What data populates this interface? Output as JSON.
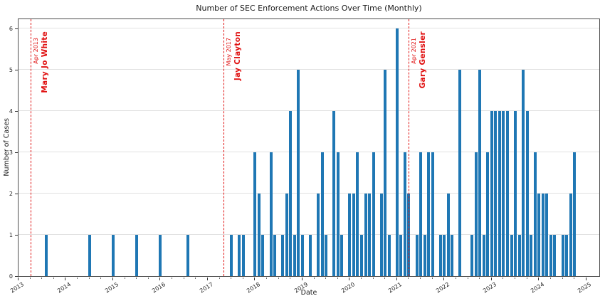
{
  "chart_data": {
    "type": "bar",
    "title": "Number of SEC Enforcement Actions Over Time (Monthly)",
    "xlabel": "Date",
    "ylabel": "Number of Cases",
    "ylim": [
      0,
      6.25
    ],
    "yticks": [
      0,
      1,
      2,
      3,
      4,
      5,
      6
    ],
    "xticks": [
      2013,
      2014,
      2015,
      2016,
      2017,
      2018,
      2019,
      2020,
      2021,
      2022,
      2023,
      2024,
      2025
    ],
    "x_start": "2013-01",
    "grid": "horizontal",
    "legend": "none",
    "bar_color": "#1f77b4",
    "annotation_color": "#e01010",
    "points": [
      {
        "date": "2013-08",
        "count": 1
      },
      {
        "date": "2014-07",
        "count": 1
      },
      {
        "date": "2015-01",
        "count": 1
      },
      {
        "date": "2015-07",
        "count": 1
      },
      {
        "date": "2016-01",
        "count": 1
      },
      {
        "date": "2016-08",
        "count": 1
      },
      {
        "date": "2017-07",
        "count": 1
      },
      {
        "date": "2017-09",
        "count": 1
      },
      {
        "date": "2017-10",
        "count": 1
      },
      {
        "date": "2018-01",
        "count": 3
      },
      {
        "date": "2018-02",
        "count": 2
      },
      {
        "date": "2018-03",
        "count": 1
      },
      {
        "date": "2018-05",
        "count": 3
      },
      {
        "date": "2018-06",
        "count": 1
      },
      {
        "date": "2018-08",
        "count": 1
      },
      {
        "date": "2018-09",
        "count": 2
      },
      {
        "date": "2018-10",
        "count": 4
      },
      {
        "date": "2018-11",
        "count": 1
      },
      {
        "date": "2018-12",
        "count": 5
      },
      {
        "date": "2019-01",
        "count": 1
      },
      {
        "date": "2019-03",
        "count": 1
      },
      {
        "date": "2019-05",
        "count": 2
      },
      {
        "date": "2019-06",
        "count": 3
      },
      {
        "date": "2019-07",
        "count": 1
      },
      {
        "date": "2019-09",
        "count": 4
      },
      {
        "date": "2019-10",
        "count": 3
      },
      {
        "date": "2019-11",
        "count": 1
      },
      {
        "date": "2020-01",
        "count": 2
      },
      {
        "date": "2020-02",
        "count": 2
      },
      {
        "date": "2020-03",
        "count": 3
      },
      {
        "date": "2020-04",
        "count": 1
      },
      {
        "date": "2020-05",
        "count": 2
      },
      {
        "date": "2020-06",
        "count": 2
      },
      {
        "date": "2020-07",
        "count": 3
      },
      {
        "date": "2020-09",
        "count": 2
      },
      {
        "date": "2020-10",
        "count": 5
      },
      {
        "date": "2020-11",
        "count": 1
      },
      {
        "date": "2021-01",
        "count": 6
      },
      {
        "date": "2021-02",
        "count": 1
      },
      {
        "date": "2021-03",
        "count": 3
      },
      {
        "date": "2021-04",
        "count": 2
      },
      {
        "date": "2021-06",
        "count": 1
      },
      {
        "date": "2021-07",
        "count": 3
      },
      {
        "date": "2021-08",
        "count": 1
      },
      {
        "date": "2021-09",
        "count": 3
      },
      {
        "date": "2021-10",
        "count": 3
      },
      {
        "date": "2021-12",
        "count": 1
      },
      {
        "date": "2022-01",
        "count": 1
      },
      {
        "date": "2022-02",
        "count": 2
      },
      {
        "date": "2022-03",
        "count": 1
      },
      {
        "date": "2022-05",
        "count": 5
      },
      {
        "date": "2022-08",
        "count": 1
      },
      {
        "date": "2022-09",
        "count": 3
      },
      {
        "date": "2022-10",
        "count": 5
      },
      {
        "date": "2022-11",
        "count": 1
      },
      {
        "date": "2022-12",
        "count": 3
      },
      {
        "date": "2023-01",
        "count": 4
      },
      {
        "date": "2023-02",
        "count": 4
      },
      {
        "date": "2023-03",
        "count": 4
      },
      {
        "date": "2023-04",
        "count": 4
      },
      {
        "date": "2023-05",
        "count": 4
      },
      {
        "date": "2023-06",
        "count": 1
      },
      {
        "date": "2023-07",
        "count": 4
      },
      {
        "date": "2023-08",
        "count": 1
      },
      {
        "date": "2023-09",
        "count": 5
      },
      {
        "date": "2023-10",
        "count": 4
      },
      {
        "date": "2023-11",
        "count": 1
      },
      {
        "date": "2023-12",
        "count": 3
      },
      {
        "date": "2024-01",
        "count": 2
      },
      {
        "date": "2024-02",
        "count": 2
      },
      {
        "date": "2024-03",
        "count": 2
      },
      {
        "date": "2024-04",
        "count": 1
      },
      {
        "date": "2024-05",
        "count": 1
      },
      {
        "date": "2024-07",
        "count": 1
      },
      {
        "date": "2024-08",
        "count": 1
      },
      {
        "date": "2024-09",
        "count": 2
      },
      {
        "date": "2024-10",
        "count": 3
      }
    ],
    "annotations": [
      {
        "date_label": "Apr 2013",
        "name": "Mary Jo White",
        "date": "2013-04"
      },
      {
        "date_label": "May 2017",
        "name": "Jay Clayton",
        "date": "2017-05"
      },
      {
        "date_label": "Apr 2021",
        "name": "Gary Gensler",
        "date": "2021-04"
      }
    ]
  }
}
